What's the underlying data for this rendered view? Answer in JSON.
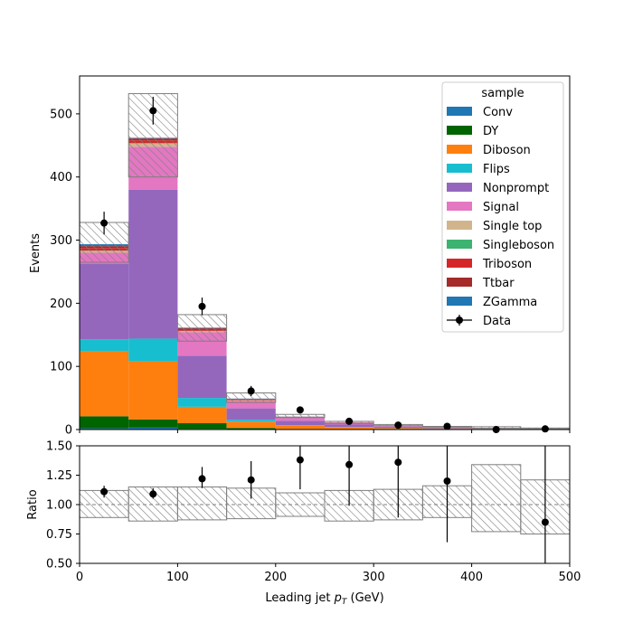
{
  "chart_data": [
    {
      "type": "stacked-bar-histogram",
      "xlim": [
        0,
        500
      ],
      "ylim": [
        0,
        560
      ],
      "xticks": [
        0,
        100,
        200,
        300,
        400,
        500
      ],
      "yticks": [
        0,
        100,
        200,
        300,
        400,
        500
      ],
      "ylabel": "Events",
      "bin_edges": [
        0,
        50,
        100,
        150,
        200,
        250,
        300,
        350,
        400,
        450,
        500
      ],
      "legend": {
        "title": "sample",
        "position": "top-right"
      },
      "series": [
        {
          "name": "Conv",
          "color": "#1f77b4",
          "values": [
            2,
            3,
            1,
            0.5,
            0.2,
            0.1,
            0,
            0,
            0,
            0
          ]
        },
        {
          "name": "DY",
          "color": "#006400",
          "values": [
            19,
            13,
            9,
            2,
            0.8,
            0.3,
            0.2,
            0.1,
            0,
            0
          ]
        },
        {
          "name": "Diboson",
          "color": "#ff7f0e",
          "values": [
            103,
            92,
            26,
            10,
            5,
            3,
            2,
            1.5,
            1,
            0.5
          ]
        },
        {
          "name": "Flips",
          "color": "#17becf",
          "values": [
            19,
            36,
            14,
            3,
            1,
            0.5,
            0.3,
            0.2,
            0.1,
            0
          ]
        },
        {
          "name": "Nonprompt",
          "color": "#9467bd",
          "values": [
            120,
            236,
            67,
            18,
            7,
            4,
            2,
            1,
            0.5,
            0.2
          ]
        },
        {
          "name": "Signal",
          "color": "#e377c2",
          "values": [
            17,
            68,
            37,
            12,
            5,
            3,
            2,
            1,
            0.5,
            0.3
          ]
        },
        {
          "name": "Single top",
          "color": "#d2b48c",
          "values": [
            3,
            5,
            2,
            1,
            0.5,
            0.2,
            0.1,
            0,
            0,
            0
          ]
        },
        {
          "name": "Singleboson",
          "color": "#3cb371",
          "values": [
            0.5,
            1,
            0.3,
            0.1,
            0,
            0,
            0,
            0,
            0,
            0
          ]
        },
        {
          "name": "Triboson",
          "color": "#d62728",
          "values": [
            4,
            4,
            2,
            1,
            0.5,
            0.2,
            0.1,
            0.1,
            0,
            0
          ]
        },
        {
          "name": "Ttbar",
          "color": "#a52a2a",
          "values": [
            3,
            3,
            2,
            1,
            0.3,
            0.2,
            0.1,
            0,
            0,
            0
          ]
        },
        {
          "name": "ZGamma",
          "color": "#1f77b4",
          "values": [
            3,
            1,
            1,
            0.4,
            0.2,
            0.1,
            0,
            0,
            0,
            0
          ]
        }
      ],
      "mc_uncertainty": {
        "name": "",
        "up": [
          328,
          532,
          182,
          58,
          24,
          13,
          8,
          5,
          4.5,
          2.5
        ],
        "down": [
          265,
          400,
          140,
          43,
          19,
          9.5,
          6,
          4,
          2,
          0.8
        ]
      },
      "data": {
        "name": "Data",
        "x": [
          25,
          75,
          125,
          175,
          225,
          275,
          325,
          375,
          425,
          475
        ],
        "y": [
          327,
          505,
          195,
          61,
          31,
          13,
          7,
          5,
          0,
          1
        ],
        "yerr": [
          18,
          22,
          14,
          8,
          5.6,
          3.6,
          2.6,
          2.2,
          0,
          1
        ]
      }
    },
    {
      "type": "ratio",
      "xlim": [
        0,
        500
      ],
      "ylim": [
        0.5,
        1.5
      ],
      "xticks": [
        0,
        100,
        200,
        300,
        400,
        500
      ],
      "yticks": [
        "0.50",
        "0.75",
        "1.00",
        "1.25",
        "1.50"
      ],
      "ylabel": "Ratio",
      "xlabel": "Leading jet  p_T (GeV)",
      "xlabel_main": "Leading jet  ",
      "xlabel_var": "p",
      "xlabel_sub": "T",
      "xlabel_unit": " (GeV)",
      "reference_line": 1.0,
      "band": {
        "up": [
          1.12,
          1.15,
          1.15,
          1.14,
          1.1,
          1.12,
          1.13,
          1.16,
          1.34,
          1.21
        ],
        "down": [
          0.89,
          0.86,
          0.87,
          0.88,
          0.9,
          0.86,
          0.87,
          0.89,
          0.77,
          0.75
        ]
      },
      "points": {
        "x": [
          25,
          75,
          125,
          175,
          225,
          275,
          325,
          375,
          475
        ],
        "y": [
          1.11,
          1.09,
          1.22,
          1.21,
          1.38,
          1.34,
          1.36,
          1.2,
          0.85
        ],
        "yerr_up": [
          0.05,
          0.05,
          0.1,
          0.16,
          0.25,
          0.37,
          0.47,
          0.52,
          0.7
        ],
        "yerr_down": [
          0.05,
          0.04,
          0.08,
          0.16,
          0.25,
          0.35,
          0.47,
          0.52,
          0.7
        ]
      }
    }
  ]
}
